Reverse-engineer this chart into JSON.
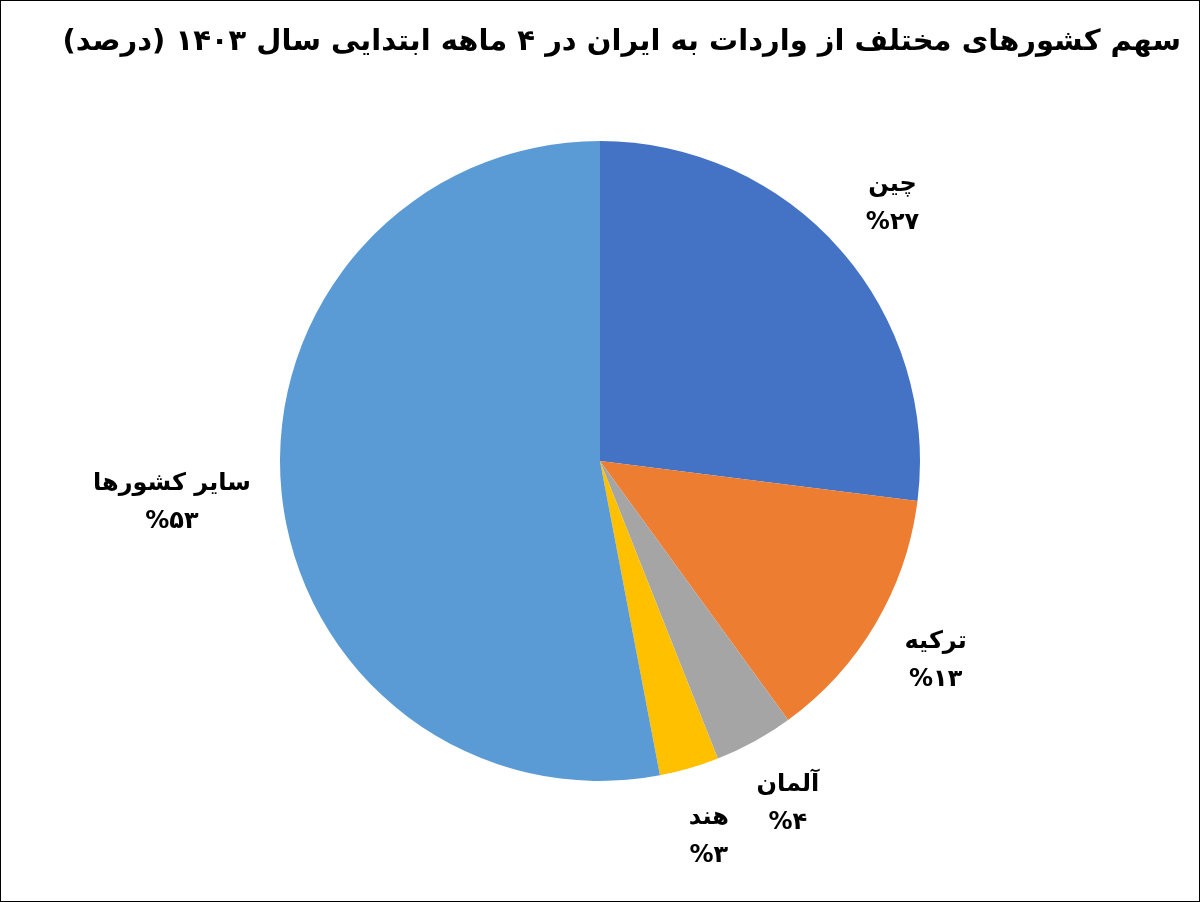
{
  "chart_data": {
    "type": "pie",
    "title": "سهم کشورهای مختلف از واردات به ایران در ۴ ماهه ابتدایی سال ۱۴۰۳ (درصد)",
    "categories": [
      "چین",
      "ترکیه",
      "آلمان",
      "هند",
      "سایر کشورها"
    ],
    "values": [
      27,
      13,
      4,
      3,
      53
    ],
    "colors": [
      "#4472c4",
      "#ed7d31",
      "#a5a5a5",
      "#ffc000",
      "#5b9bd5"
    ],
    "value_labels": [
      "%۲۷",
      "%۱۳",
      "%۴",
      "%۳",
      "%۵۳"
    ],
    "legend": false
  }
}
